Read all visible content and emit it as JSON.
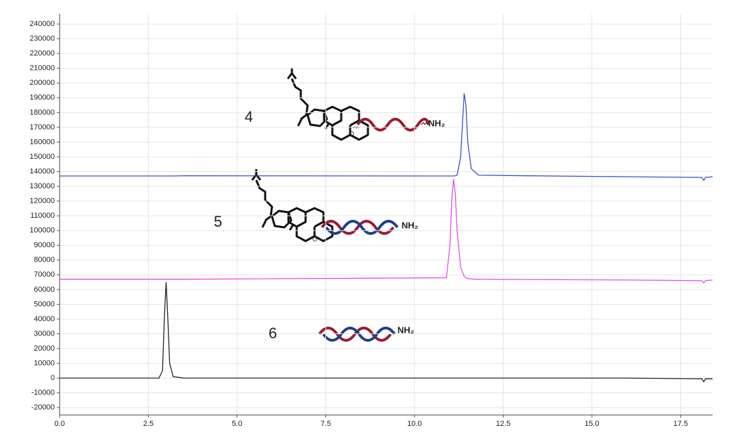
{
  "chart_data": {
    "type": "line",
    "x": [
      0,
      2.8,
      2.9,
      2.95,
      3.0,
      3.05,
      3.1,
      3.2,
      3.5,
      10.9,
      11.0,
      11.05,
      11.1,
      11.15,
      11.2,
      11.3,
      11.4,
      11.45,
      11.5,
      11.6,
      11.8,
      16.0,
      18.1,
      18.15,
      18.2,
      18.4
    ],
    "series": [
      {
        "color": "#3b4fc9",
        "values": [
          137000,
          137000,
          137000,
          137000,
          137000,
          137000,
          137000,
          137000,
          137200,
          137000,
          137000,
          137000,
          137000,
          137200,
          137500,
          150000,
          193000,
          185000,
          160000,
          142000,
          137500,
          136500,
          136000,
          134000,
          136000,
          136500
        ]
      },
      {
        "color": "#e64de6",
        "values": [
          67000,
          67000,
          67000,
          67000,
          67000,
          67000,
          67000,
          67000,
          67000,
          68000,
          90000,
          120000,
          135000,
          125000,
          100000,
          75000,
          69000,
          68000,
          67500,
          67200,
          67000,
          66500,
          66000,
          64500,
          66000,
          66500
        ]
      },
      {
        "color": "#222222",
        "values": [
          0,
          0,
          5000,
          40000,
          65000,
          40000,
          10000,
          1000,
          0,
          0,
          0,
          0,
          0,
          0,
          0,
          0,
          0,
          0,
          0,
          0,
          0,
          0,
          -500,
          -2500,
          -500,
          -500
        ]
      }
    ],
    "xlim": [
      0,
      18.4
    ],
    "ylim": [
      -25000,
      247000
    ],
    "xticks": [
      {
        "value": 0,
        "label": "0.0"
      },
      2.5,
      {
        "value": 5,
        "label": "5.0"
      },
      7.5,
      {
        "value": 10,
        "label": "10.0"
      },
      12.5,
      {
        "value": 15,
        "label": "15.0"
      },
      17.5
    ],
    "yticks": [
      -20000,
      -10000,
      0,
      10000,
      20000,
      30000,
      40000,
      50000,
      60000,
      70000,
      80000,
      90000,
      100000,
      110000,
      120000,
      130000,
      140000,
      150000,
      160000,
      170000,
      180000,
      190000,
      200000,
      210000,
      220000,
      230000,
      240000
    ],
    "grid": true,
    "annotations": [
      "4",
      "5",
      "6",
      "NH₂",
      "NH₂",
      "NH₂",
      "O",
      "O"
    ]
  }
}
